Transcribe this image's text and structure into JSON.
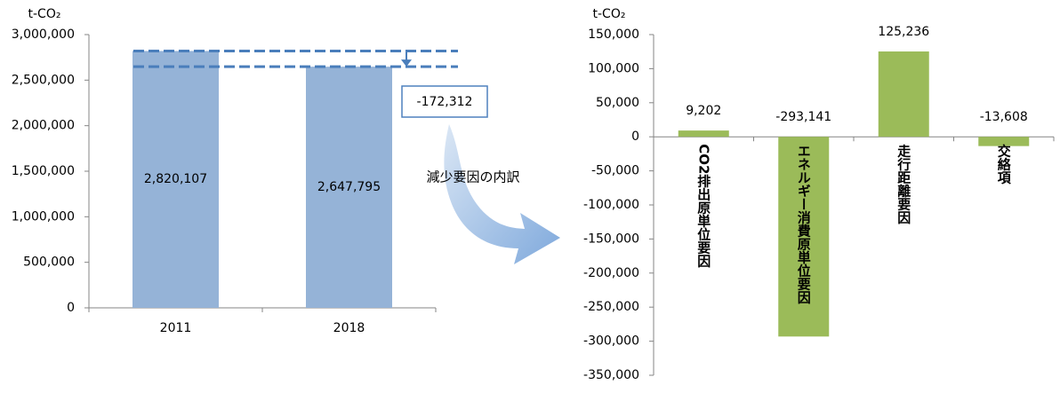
{
  "chart_data": [
    {
      "type": "bar",
      "y_label": "t-CO₂",
      "categories": [
        "2011",
        "2018"
      ],
      "values": [
        2820107,
        2647795
      ],
      "value_labels": [
        "2,820,107",
        "2,647,795"
      ],
      "color": "#95b3d7",
      "ylim": [
        0,
        3000000
      ],
      "yticks": [
        0,
        {
          "value": 500000,
          "label": "500,000"
        },
        {
          "value": 1000000,
          "label": "1,000,000"
        },
        {
          "value": 1500000,
          "label": "1,500,000"
        },
        {
          "value": 2000000,
          "label": "2,000,000"
        },
        {
          "value": 2500000,
          "label": "2,500,000"
        },
        {
          "value": 3000000,
          "label": "3,000,000"
        }
      ],
      "difference": {
        "value": -172312,
        "label": "-172,312"
      }
    },
    {
      "type": "bar",
      "y_label": "t-CO₂",
      "categories": [
        "CO2排出原単位要因",
        "エネルギー消費原単位要因",
        "走行距離要因",
        "交絡項"
      ],
      "values": [
        9202,
        -293141,
        125236,
        -13608
      ],
      "value_labels": [
        "9,202",
        "-293,141",
        "125,236",
        "-13,608"
      ],
      "color": "#9bbb59",
      "ylim": [
        -350000,
        150000
      ],
      "yticks": [
        {
          "value": -350000,
          "label": "-350,000"
        },
        {
          "value": -300000,
          "label": "-300,000"
        },
        {
          "value": -250000,
          "label": "-250,000"
        },
        {
          "value": -200000,
          "label": "-200,000"
        },
        {
          "value": -150000,
          "label": "-150,000"
        },
        {
          "value": -100000,
          "label": "-100,000"
        },
        {
          "value": -50000,
          "label": "-50,000"
        },
        0,
        {
          "value": 50000,
          "label": "50,000"
        },
        {
          "value": 100000,
          "label": "100,000"
        },
        {
          "value": 150000,
          "label": "150,000"
        }
      ]
    }
  ],
  "annotation": "減少要因の内訳"
}
